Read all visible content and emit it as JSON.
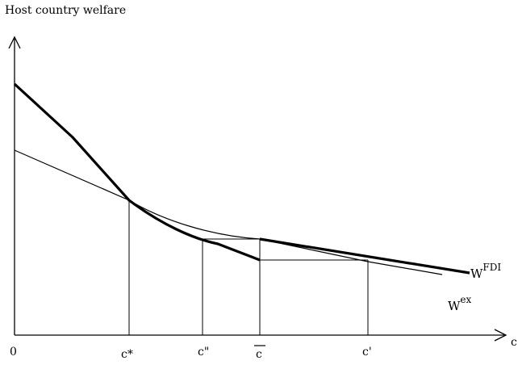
{
  "diagram": {
    "y_axis_label": "Host country welfare",
    "x_axis_label": "c",
    "origin_label": "0",
    "ticks": {
      "c_star": "c*",
      "c_double_prime": "c\"",
      "c_bar": "c",
      "c_prime": "c'"
    },
    "curves": {
      "fdi": {
        "base": "W",
        "sup": "FDI"
      },
      "ex": {
        "base": "W",
        "sup": "ex"
      }
    },
    "colors": {
      "line": "#000000",
      "background": "#ffffff"
    }
  }
}
